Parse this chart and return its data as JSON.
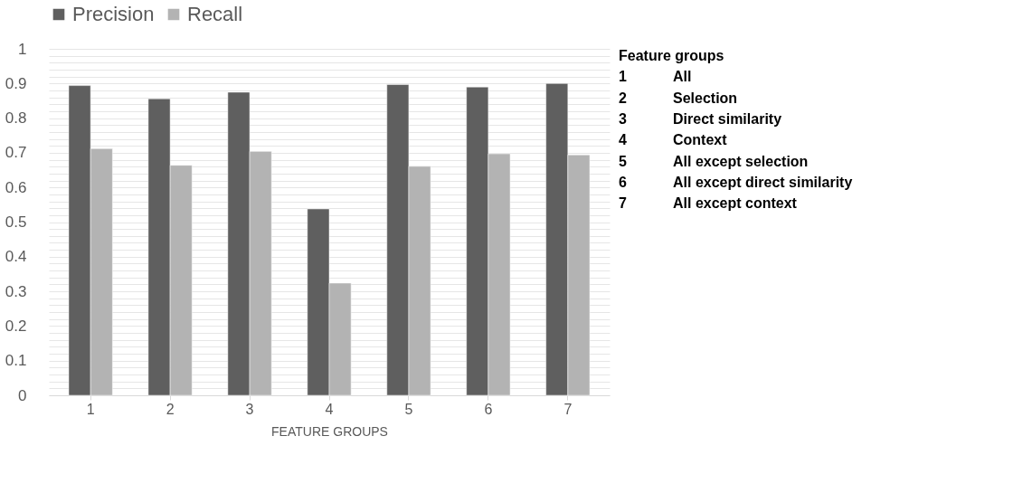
{
  "chart_data": {
    "type": "bar",
    "xlabel": "FEATURE GROUPS",
    "categories": [
      "1",
      "2",
      "3",
      "4",
      "5",
      "6",
      "7"
    ],
    "series": [
      {
        "name": "Precision",
        "color": "#5f5f5f",
        "values": [
          0.894,
          0.856,
          0.875,
          0.538,
          0.897,
          0.89,
          0.9
        ]
      },
      {
        "name": "Recall",
        "color": "#b3b3b3",
        "values": [
          0.712,
          0.664,
          0.704,
          0.324,
          0.661,
          0.697,
          0.694
        ]
      }
    ],
    "ylim": [
      0,
      1
    ],
    "yticks": [
      0,
      {
        "value": 0.02,
        "label": null
      },
      {
        "value": 0.04,
        "label": null
      },
      {
        "value": 0.06,
        "label": null
      },
      {
        "value": 0.08,
        "label": null
      },
      0.1,
      {
        "value": 0.12,
        "label": null
      },
      {
        "value": 0.14,
        "label": null
      },
      {
        "value": 0.16,
        "label": null
      },
      {
        "value": 0.18,
        "label": null
      },
      0.2,
      {
        "value": 0.22,
        "label": null
      },
      {
        "value": 0.24,
        "label": null
      },
      {
        "value": 0.26,
        "label": null
      },
      {
        "value": 0.28,
        "label": null
      },
      0.3,
      {
        "value": 0.32,
        "label": null
      },
      {
        "value": 0.34,
        "label": null
      },
      {
        "value": 0.36,
        "label": null
      },
      {
        "value": 0.38,
        "label": null
      },
      0.4,
      {
        "value": 0.42,
        "label": null
      },
      {
        "value": 0.44,
        "label": null
      },
      {
        "value": 0.46,
        "label": null
      },
      {
        "value": 0.48,
        "label": null
      },
      0.5,
      {
        "value": 0.52,
        "label": null
      },
      {
        "value": 0.54,
        "label": null
      },
      {
        "value": 0.56,
        "label": null
      },
      {
        "value": 0.58,
        "label": null
      },
      0.6,
      {
        "value": 0.62,
        "label": null
      },
      {
        "value": 0.64,
        "label": null
      },
      {
        "value": 0.66,
        "label": null
      },
      {
        "value": 0.68,
        "label": null
      },
      0.7,
      {
        "value": 0.72,
        "label": null
      },
      {
        "value": 0.74,
        "label": null
      },
      {
        "value": 0.76,
        "label": null
      },
      {
        "value": 0.78,
        "label": null
      },
      0.8,
      {
        "value": 0.82,
        "label": null
      },
      {
        "value": 0.84,
        "label": null
      },
      {
        "value": 0.86,
        "label": null
      },
      {
        "value": 0.88,
        "label": null
      },
      0.9,
      {
        "value": 0.92,
        "label": null
      },
      {
        "value": 0.94,
        "label": null
      },
      {
        "value": 0.96,
        "label": null
      },
      {
        "value": 0.98,
        "label": null
      },
      1
    ],
    "grid": "y",
    "legend": "top",
    "annotations": [
      "Feature groups",
      "1 All",
      "2 Selection",
      "3 Direct similarity",
      "4 Context",
      "5 All except selection",
      "6 All except direct similarity",
      "7 All except context"
    ]
  }
}
